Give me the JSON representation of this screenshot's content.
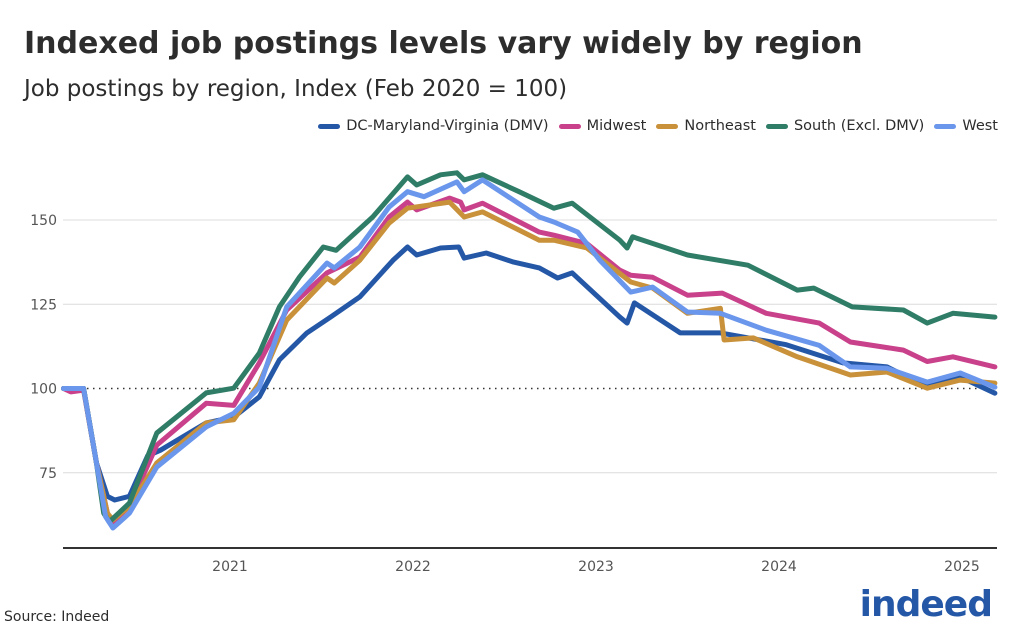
{
  "chart_data": {
    "type": "line",
    "title": "Indexed job postings levels vary widely by region",
    "subtitle": "Job postings by region, Index (Feb 2020 = 100)",
    "xlabel": "",
    "ylabel": "",
    "source": "Source: Indeed",
    "x_ticks": [
      "2021",
      "2022",
      "2023",
      "2024",
      "2025"
    ],
    "y_ticks": [
      75,
      100,
      125,
      150
    ],
    "xlim": [
      2020.09,
      2025.19
    ],
    "ylim": [
      52.5,
      168
    ],
    "reference_line": 100,
    "grid": "horizontal",
    "legend_position": "top-right",
    "series": [
      {
        "name": "DC-Maryland-Virginia (DMV)",
        "color": "#2557a7",
        "points": [
          [
            2020.09,
            100
          ],
          [
            2020.2,
            100
          ],
          [
            2020.27,
            78
          ],
          [
            2020.33,
            68
          ],
          [
            2020.37,
            66.9
          ],
          [
            2020.45,
            68
          ],
          [
            2020.55,
            80
          ],
          [
            2020.62,
            81.7
          ],
          [
            2020.87,
            89.8
          ],
          [
            2021.02,
            91.5
          ],
          [
            2021.16,
            97.5
          ],
          [
            2021.27,
            108.5
          ],
          [
            2021.42,
            116.5
          ],
          [
            2021.55,
            121.2
          ],
          [
            2021.71,
            127.2
          ],
          [
            2021.89,
            138
          ],
          [
            2021.97,
            142
          ],
          [
            2022.02,
            139.6
          ],
          [
            2022.15,
            141.7
          ],
          [
            2022.25,
            142
          ],
          [
            2022.28,
            138.7
          ],
          [
            2022.4,
            140.2
          ],
          [
            2022.55,
            137.5
          ],
          [
            2022.69,
            135.8
          ],
          [
            2022.79,
            132.8
          ],
          [
            2022.87,
            134.3
          ],
          [
            2023.13,
            121.2
          ],
          [
            2023.17,
            119.4
          ],
          [
            2023.21,
            125.4
          ],
          [
            2023.46,
            116.5
          ],
          [
            2023.68,
            116.5
          ],
          [
            2024.04,
            113
          ],
          [
            2024.35,
            107.6
          ],
          [
            2024.59,
            106.4
          ],
          [
            2024.81,
            100.5
          ],
          [
            2024.99,
            103.4
          ],
          [
            2025.18,
            98.6
          ]
        ]
      },
      {
        "name": "Midwest",
        "color": "#c9418a",
        "points": [
          [
            2020.09,
            100
          ],
          [
            2020.13,
            99
          ],
          [
            2020.2,
            99.5
          ],
          [
            2020.27,
            78
          ],
          [
            2020.33,
            63
          ],
          [
            2020.36,
            60.5
          ],
          [
            2020.45,
            65
          ],
          [
            2020.6,
            83.2
          ],
          [
            2020.87,
            95.6
          ],
          [
            2021.02,
            95
          ],
          [
            2021.16,
            107.6
          ],
          [
            2021.31,
            123.3
          ],
          [
            2021.53,
            134.3
          ],
          [
            2021.71,
            139
          ],
          [
            2021.87,
            150.9
          ],
          [
            2021.97,
            155.3
          ],
          [
            2022.02,
            153
          ],
          [
            2022.2,
            156.5
          ],
          [
            2022.26,
            155.3
          ],
          [
            2022.28,
            153
          ],
          [
            2022.38,
            155
          ],
          [
            2022.69,
            146.4
          ],
          [
            2022.77,
            145.5
          ],
          [
            2022.95,
            143
          ],
          [
            2023.13,
            135.1
          ],
          [
            2023.19,
            133.6
          ],
          [
            2023.31,
            133
          ],
          [
            2023.5,
            127.7
          ],
          [
            2023.69,
            128.3
          ],
          [
            2023.93,
            122.3
          ],
          [
            2024.22,
            119.4
          ],
          [
            2024.39,
            113.8
          ],
          [
            2024.68,
            111.4
          ],
          [
            2024.81,
            108
          ],
          [
            2024.95,
            109.4
          ],
          [
            2025.18,
            106.4
          ]
        ]
      },
      {
        "name": "Northeast",
        "color": "#c8913a",
        "points": [
          [
            2020.09,
            100
          ],
          [
            2020.2,
            100
          ],
          [
            2020.27,
            78
          ],
          [
            2020.33,
            63
          ],
          [
            2020.36,
            61
          ],
          [
            2020.45,
            65
          ],
          [
            2020.6,
            77.9
          ],
          [
            2020.87,
            89.8
          ],
          [
            2021.02,
            90.7
          ],
          [
            2021.16,
            101.6
          ],
          [
            2021.31,
            120.3
          ],
          [
            2021.53,
            132.8
          ],
          [
            2021.57,
            131.3
          ],
          [
            2021.71,
            138.1
          ],
          [
            2021.87,
            149.1
          ],
          [
            2021.97,
            153.5
          ],
          [
            2022.2,
            155.3
          ],
          [
            2022.28,
            150.9
          ],
          [
            2022.38,
            152.4
          ],
          [
            2022.69,
            144
          ],
          [
            2022.77,
            144
          ],
          [
            2022.95,
            141.7
          ],
          [
            2023.19,
            131.6
          ],
          [
            2023.31,
            129.8
          ],
          [
            2023.5,
            122.3
          ],
          [
            2023.68,
            123.8
          ],
          [
            2023.7,
            114.4
          ],
          [
            2023.86,
            115
          ],
          [
            2024.1,
            109.4
          ],
          [
            2024.39,
            104
          ],
          [
            2024.59,
            104.9
          ],
          [
            2024.81,
            100.1
          ],
          [
            2024.99,
            102.5
          ],
          [
            2025.18,
            101.6
          ]
        ]
      },
      {
        "name": "South (Excl. DMV)",
        "color": "#2f7d66",
        "points": [
          [
            2020.09,
            100
          ],
          [
            2020.2,
            100
          ],
          [
            2020.27,
            78
          ],
          [
            2020.31,
            63
          ],
          [
            2020.34,
            60.4
          ],
          [
            2020.45,
            66
          ],
          [
            2020.6,
            86.8
          ],
          [
            2020.87,
            98.7
          ],
          [
            2021.02,
            100.1
          ],
          [
            2021.16,
            110.5
          ],
          [
            2021.27,
            124.2
          ],
          [
            2021.38,
            133.1
          ],
          [
            2021.51,
            142
          ],
          [
            2021.58,
            141
          ],
          [
            2021.78,
            150.9
          ],
          [
            2021.97,
            162.8
          ],
          [
            2022.02,
            160.4
          ],
          [
            2022.15,
            163.4
          ],
          [
            2022.24,
            164
          ],
          [
            2022.28,
            161.9
          ],
          [
            2022.38,
            163.4
          ],
          [
            2022.58,
            158.4
          ],
          [
            2022.77,
            153.5
          ],
          [
            2022.87,
            155
          ],
          [
            2023.13,
            144
          ],
          [
            2023.17,
            141.7
          ],
          [
            2023.2,
            145
          ],
          [
            2023.5,
            139.6
          ],
          [
            2023.83,
            136.6
          ],
          [
            2024.1,
            129.2
          ],
          [
            2024.19,
            129.8
          ],
          [
            2024.4,
            124.2
          ],
          [
            2024.68,
            123.3
          ],
          [
            2024.81,
            119.4
          ],
          [
            2024.95,
            122.3
          ],
          [
            2025.18,
            121.2
          ]
        ]
      },
      {
        "name": "West",
        "color": "#6a96ec",
        "points": [
          [
            2020.09,
            100
          ],
          [
            2020.2,
            100
          ],
          [
            2020.27,
            78
          ],
          [
            2020.32,
            62
          ],
          [
            2020.36,
            58.6
          ],
          [
            2020.45,
            63
          ],
          [
            2020.6,
            76.7
          ],
          [
            2020.87,
            88.6
          ],
          [
            2021.02,
            92.6
          ],
          [
            2021.16,
            100.4
          ],
          [
            2021.31,
            124.2
          ],
          [
            2021.53,
            137.2
          ],
          [
            2021.57,
            135.8
          ],
          [
            2021.71,
            142
          ],
          [
            2021.87,
            153.9
          ],
          [
            2021.97,
            158.4
          ],
          [
            2022.06,
            156.9
          ],
          [
            2022.24,
            161.3
          ],
          [
            2022.28,
            158.4
          ],
          [
            2022.38,
            161.9
          ],
          [
            2022.69,
            150.9
          ],
          [
            2022.77,
            149.4
          ],
          [
            2022.9,
            146.4
          ],
          [
            2023.02,
            138.1
          ],
          [
            2023.19,
            128.6
          ],
          [
            2023.31,
            130.1
          ],
          [
            2023.5,
            122.7
          ],
          [
            2023.68,
            122.3
          ],
          [
            2023.93,
            117.3
          ],
          [
            2024.22,
            112.8
          ],
          [
            2024.39,
            106.4
          ],
          [
            2024.59,
            106
          ],
          [
            2024.81,
            101.9
          ],
          [
            2024.99,
            104.6
          ],
          [
            2025.18,
            100.4
          ]
        ]
      }
    ]
  },
  "logo_text": "indeed"
}
